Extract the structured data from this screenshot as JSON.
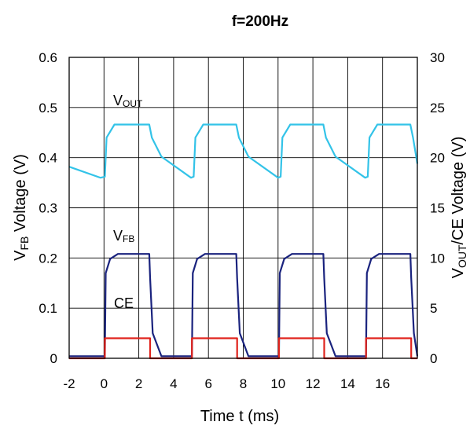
{
  "chart_data": {
    "type": "line",
    "title": "f=200Hz",
    "xlabel": "Time t (ms)",
    "ylabel_left": {
      "base": "V",
      "sub": "FB",
      "rest": " Voltage (V)"
    },
    "ylabel_right": {
      "base": "V",
      "sub": "OUT",
      "rest": "/CE Voltage (V)"
    },
    "xlim": [
      -2,
      18
    ],
    "ylim_left": [
      0,
      0.6
    ],
    "ylim_right": [
      0,
      30
    ],
    "x_ticks": [
      -2,
      0,
      2,
      4,
      6,
      8,
      10,
      12,
      14,
      16
    ],
    "y_ticks_left": [
      "0",
      "0.1",
      "0.2",
      "0.3",
      "0.4",
      "0.5",
      "0.6"
    ],
    "y_ticks_right": [
      "0",
      "5",
      "10",
      "15",
      "20",
      "25",
      "30"
    ],
    "grid": true,
    "series": [
      {
        "name": "VOUT",
        "label_base": "V",
        "label_sub": "OUT",
        "axis": "right",
        "color": "#33c3e8",
        "x": [
          -2,
          -0.2,
          0.05,
          0.15,
          0.6,
          2.6,
          2.75,
          3.3,
          5.0,
          5.15,
          5.25,
          5.7,
          7.6,
          7.75,
          8.3,
          10.0,
          10.15,
          10.25,
          10.7,
          12.6,
          12.75,
          13.3,
          15.0,
          15.15,
          15.25,
          15.7,
          17.6,
          17.75,
          18
        ],
        "y": [
          19.1,
          18.0,
          18.1,
          22.0,
          23.3,
          23.3,
          22.0,
          20.1,
          18.0,
          18.1,
          22.0,
          23.3,
          23.3,
          22.0,
          20.1,
          18.0,
          18.1,
          22.0,
          23.3,
          23.3,
          22.0,
          20.1,
          18.0,
          18.1,
          22.0,
          23.3,
          23.3,
          22.0,
          19.4
        ]
      },
      {
        "name": "VFB",
        "label_base": "V",
        "label_sub": "FB",
        "axis": "left",
        "color": "#1a237e",
        "x": [
          -2,
          0.05,
          0.1,
          0.35,
          0.8,
          2.6,
          2.65,
          2.8,
          3.3,
          5.0,
          5.05,
          5.1,
          5.35,
          5.8,
          7.6,
          7.65,
          7.8,
          8.3,
          10.0,
          10.05,
          10.1,
          10.35,
          10.8,
          12.6,
          12.65,
          12.8,
          13.3,
          15.0,
          15.05,
          15.1,
          15.35,
          15.8,
          17.6,
          17.65,
          17.8,
          18
        ],
        "y": [
          0.004,
          0.004,
          0.17,
          0.198,
          0.208,
          0.208,
          0.16,
          0.05,
          0.004,
          0.004,
          0.004,
          0.17,
          0.198,
          0.208,
          0.208,
          0.16,
          0.05,
          0.004,
          0.004,
          0.004,
          0.17,
          0.198,
          0.208,
          0.208,
          0.16,
          0.05,
          0.004,
          0.004,
          0.004,
          0.17,
          0.198,
          0.208,
          0.208,
          0.16,
          0.05,
          0.004
        ]
      },
      {
        "name": "CE",
        "label_base": "CE",
        "label_sub": "",
        "axis": "right",
        "color": "#e0231c",
        "x": [
          -2,
          0.05,
          0.05,
          2.65,
          2.65,
          5.05,
          5.05,
          7.65,
          7.65,
          10.05,
          10.05,
          12.65,
          12.65,
          15.05,
          15.05,
          17.65,
          17.65,
          18
        ],
        "y": [
          0,
          0,
          2,
          2,
          0,
          0,
          2,
          2,
          0,
          0,
          2,
          2,
          0,
          0,
          2,
          2,
          0,
          0
        ]
      }
    ]
  }
}
